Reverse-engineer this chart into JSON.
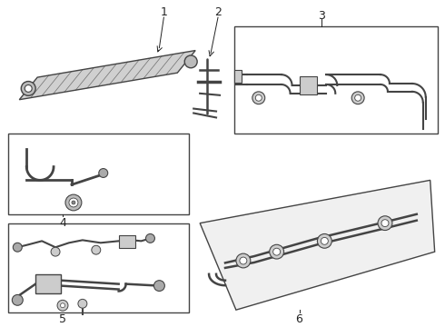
{
  "background_color": "#ffffff",
  "line_color": "#444444",
  "dark_color": "#222222",
  "fill_color": "#e8e8e8",
  "figsize": [
    4.9,
    3.6
  ],
  "dpi": 100,
  "label_fontsize": 9
}
